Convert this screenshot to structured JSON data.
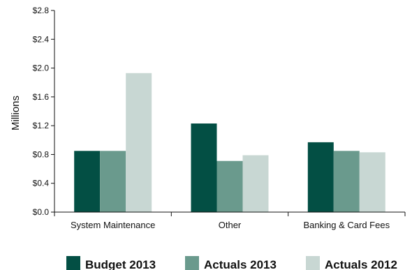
{
  "chart_data": {
    "type": "bar",
    "categories": [
      "System Maintenance",
      "Other",
      "Banking & Card Fees"
    ],
    "series": [
      {
        "name": "Budget 2013",
        "values": [
          0.85,
          1.23,
          0.97
        ],
        "color": "#034f44"
      },
      {
        "name": "Actuals 2013",
        "values": [
          0.85,
          0.71,
          0.85
        ],
        "color": "#6a9a8d"
      },
      {
        "name": "Actuals 2012",
        "values": [
          1.93,
          0.79,
          0.83
        ],
        "color": "#c8d7d3"
      }
    ],
    "ylabel": "Millions",
    "ylim": [
      0,
      2.8
    ],
    "yticks": [
      0,
      0.4,
      0.8,
      1.2,
      1.6,
      2.0,
      2.4,
      2.8
    ],
    "ytick_labels": [
      "$0.0",
      "$0.4",
      "$0.8",
      "$1.2",
      "$1.6",
      "$2.0",
      "$2.4",
      "$2.8"
    ],
    "grid": false,
    "legend_position": "bottom"
  }
}
